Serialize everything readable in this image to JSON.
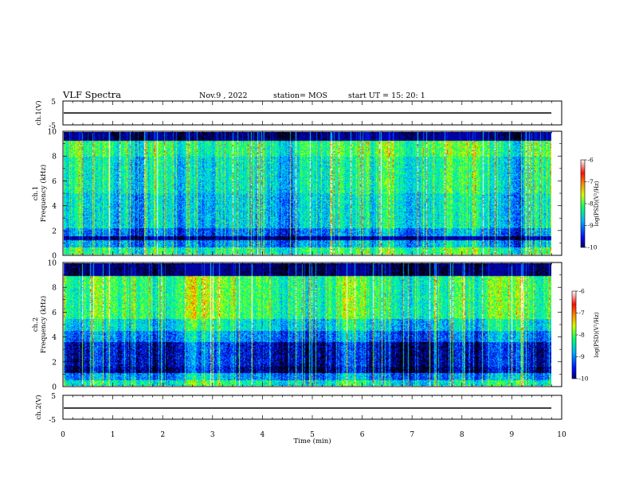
{
  "header": {
    "title": "VLF Spectra",
    "date": "Nov.9 , 2022",
    "station": "station= MOS",
    "start": "start UT = 15: 20: 1"
  },
  "chart_data": [
    {
      "type": "line",
      "name": "ch1-waveform",
      "ylabel": "ch.1(V)",
      "ylim": [
        -5,
        5
      ],
      "yticks": [
        "5",
        "-5"
      ],
      "xlim": [
        0,
        10
      ],
      "approx_value": 0
    },
    {
      "type": "heatmap",
      "name": "ch1-spectrogram",
      "ylabel_line1": "ch.1",
      "ylabel_line2": "Frequency (kHz)",
      "ylim": [
        0,
        10
      ],
      "yticks": [
        "0",
        "2",
        "4",
        "6",
        "8",
        "10"
      ],
      "xlim": [
        0,
        10
      ],
      "data_end_min": 9.83,
      "colorbar": {
        "label": "log(PSD)(V²/Hz)",
        "range": [
          -10,
          -6
        ],
        "ticks": [
          "-6",
          "-7",
          "-8",
          "-9",
          "-10"
        ]
      }
    },
    {
      "type": "heatmap",
      "name": "ch2-spectrogram",
      "ylabel_line1": "ch.2",
      "ylabel_line2": "Frequency (kHz)",
      "ylim": [
        0,
        10
      ],
      "yticks": [
        "0",
        "2",
        "4",
        "6",
        "8",
        "10"
      ],
      "xlim": [
        0,
        10
      ],
      "data_end_min": 9.83,
      "colorbar": {
        "label": "log(PSD)(V²/Hz)",
        "range": [
          -10,
          -6
        ],
        "ticks": [
          "-6",
          "-7",
          "-8",
          "-9",
          "-10"
        ]
      }
    },
    {
      "type": "line",
      "name": "ch2-waveform",
      "ylabel": "ch.2(V)",
      "ylim": [
        -5,
        5
      ],
      "yticks": [
        "5",
        "-5"
      ],
      "xlim": [
        0,
        10
      ],
      "approx_value": 0
    }
  ],
  "xaxis": {
    "label": "Time (min)",
    "ticks": [
      "0",
      "1",
      "2",
      "3",
      "4",
      "5",
      "6",
      "7",
      "8",
      "9",
      "10"
    ]
  },
  "colors": {
    "colormap": [
      "#000000",
      "#00008c",
      "#0010ff",
      "#0098ff",
      "#00e8e8",
      "#00ff70",
      "#80ff00",
      "#f0ff00",
      "#ff9000",
      "#ff2000",
      "#ffffff"
    ]
  }
}
